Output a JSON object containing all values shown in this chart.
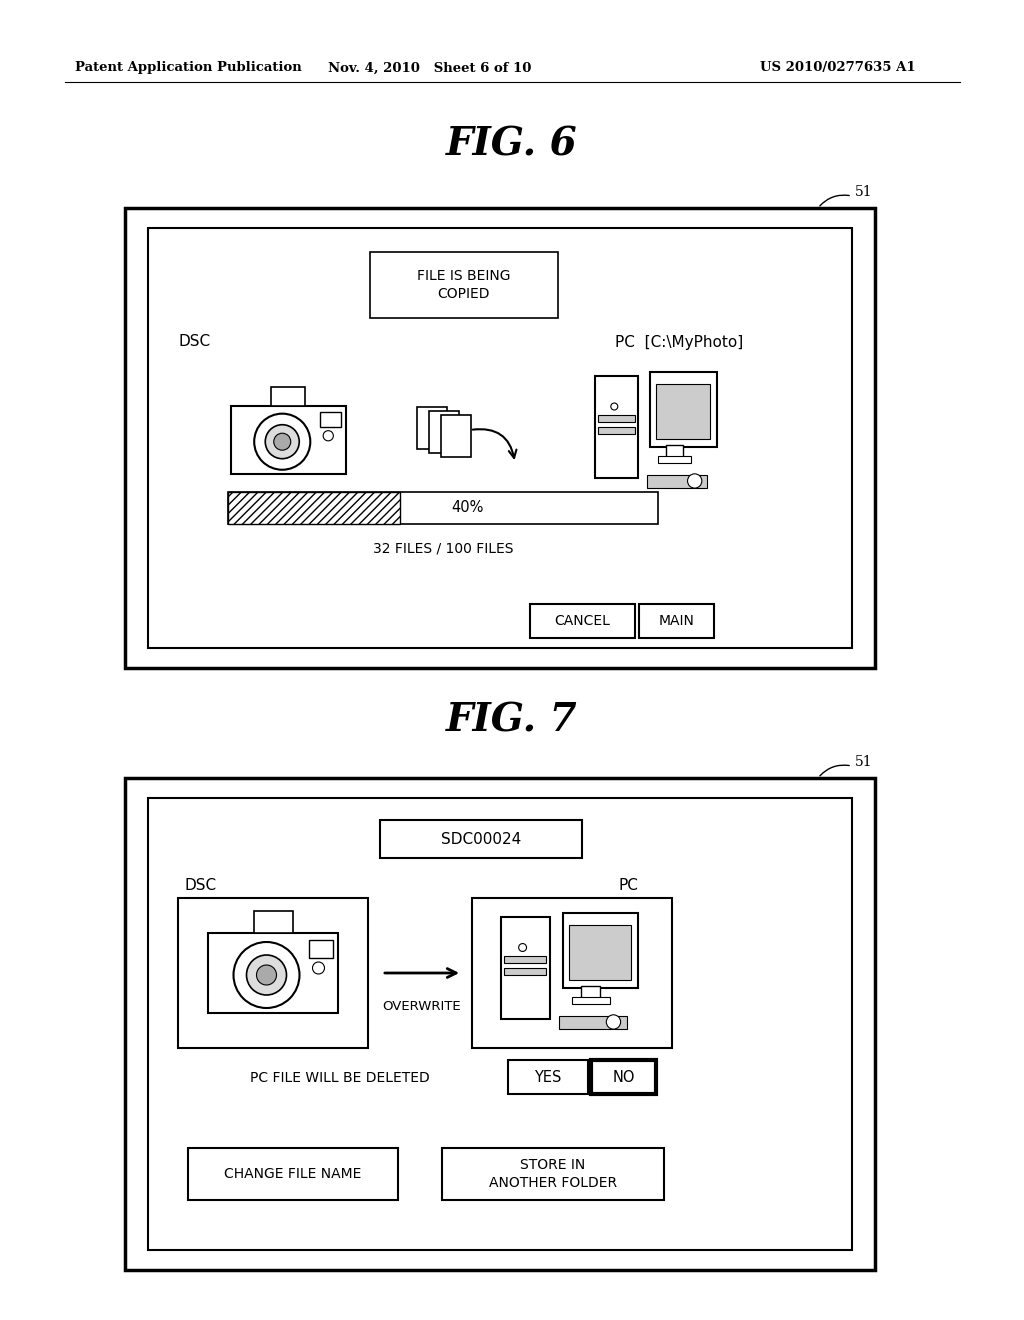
{
  "bg_color": "#ffffff",
  "header_left": "Patent Application Publication",
  "header_mid": "Nov. 4, 2010   Sheet 6 of 10",
  "header_right": "US 2010/0277635 A1",
  "fig6_title": "FIG. 6",
  "fig7_title": "FIG. 7",
  "label_51": "51",
  "fig6": {
    "title_text": "FILE IS BEING\nCOPIED",
    "dsc_label": "DSC",
    "pc_label": "PC  [C:\\MyPhoto]",
    "progress_pct": "40%",
    "progress_files": "32 FILES / 100 FILES",
    "cancel_btn": "CANCEL",
    "main_btn": "MAIN"
  },
  "fig7": {
    "title_text": "SDC00024",
    "dsc_label": "DSC",
    "pc_label": "PC",
    "overwrite_label": "OVERWRITE",
    "delete_text": "PC FILE WILL BE DELETED",
    "yes_btn": "YES",
    "no_btn": "NO",
    "change_btn": "CHANGE FILE NAME",
    "store_btn": "STORE IN\nANOTHER FOLDER"
  }
}
